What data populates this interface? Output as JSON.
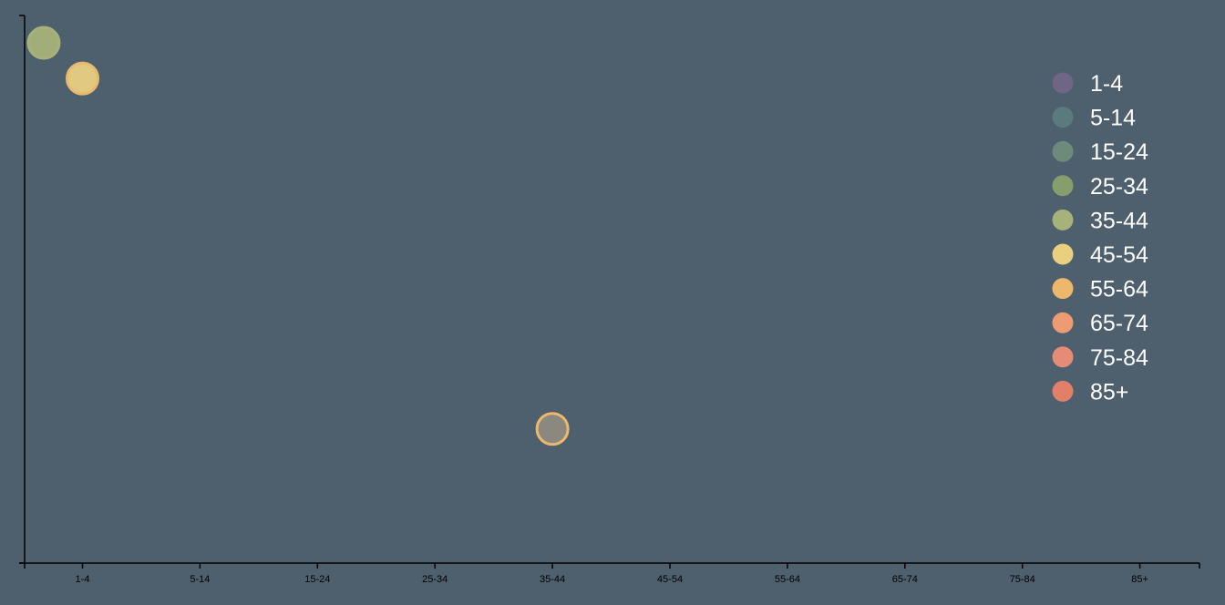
{
  "chart_data": {
    "type": "scatter",
    "background": "#4e5f6e",
    "axis_color": "#000000",
    "x": {
      "categories": [
        "1-4",
        "5-14",
        "15-24",
        "25-34",
        "35-44",
        "45-54",
        "55-64",
        "65-74",
        "75-84",
        "85+"
      ]
    },
    "series": [
      {
        "name": "1-4",
        "color": "#6f6585",
        "points": []
      },
      {
        "name": "5-14",
        "color": "#5b7a7d",
        "points": []
      },
      {
        "name": "15-24",
        "color": "#6e8a7c",
        "points": []
      },
      {
        "name": "25-34",
        "color": "#869e6c",
        "points": []
      },
      {
        "name": "35-44",
        "color": "#a6b27a",
        "points": [
          {
            "x": "1-4",
            "offset": -0.33,
            "y": 0.95,
            "stroke": "#a6b27a"
          }
        ]
      },
      {
        "name": "45-54",
        "color": "#e9d07f",
        "points": [
          {
            "x": "1-4",
            "offset": 0.0,
            "y": 0.885,
            "stroke": "#e9b96d"
          }
        ]
      },
      {
        "name": "55-64",
        "color": "#eeb86c",
        "points": []
      },
      {
        "name": "65-74",
        "color": "#ec9c70",
        "points": []
      },
      {
        "name": "75-84",
        "color": "#e48c78",
        "points": []
      },
      {
        "name": "85+",
        "color": "#e27f69",
        "points": [
          {
            "x": "35-44",
            "offset": 0.0,
            "y": 0.245,
            "fill": "#8e8a80",
            "stroke": "#eeb86c"
          }
        ]
      }
    ],
    "legend": {
      "position": "top-right",
      "items": [
        "1-4",
        "5-14",
        "15-24",
        "25-34",
        "35-44",
        "45-54",
        "55-64",
        "65-74",
        "75-84",
        "85+"
      ]
    }
  }
}
